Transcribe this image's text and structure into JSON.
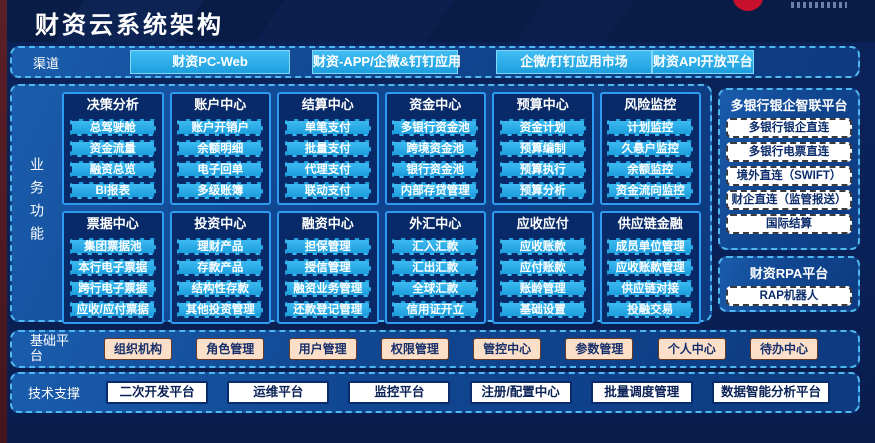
{
  "header": {
    "title": "财资云系统架构"
  },
  "channels": {
    "label": "渠道",
    "items": [
      "财资PC-Web",
      "财资-APP/企微&钉钉应用",
      "企微/钉钉应用市场",
      "财资API开放平台"
    ]
  },
  "business": {
    "label": "业务功能",
    "cards": [
      {
        "title": "决策分析",
        "items": [
          "总驾驶舱",
          "资金流量",
          "融资总览",
          "BI报表"
        ]
      },
      {
        "title": "账户中心",
        "items": [
          "账户开销户",
          "余额明细",
          "电子回单",
          "多级账簿"
        ]
      },
      {
        "title": "结算中心",
        "items": [
          "单笔支付",
          "批量支付",
          "代理支付",
          "联动支付"
        ]
      },
      {
        "title": "资金中心",
        "items": [
          "多银行资金池",
          "跨境资金池",
          "银行资金池",
          "内部存贷管理"
        ]
      },
      {
        "title": "预算中心",
        "items": [
          "资金计划",
          "预算编制",
          "预算执行",
          "预算分析"
        ]
      },
      {
        "title": "风险监控",
        "items": [
          "计划监控",
          "久悬户监控",
          "余额监控",
          "资金流向监控"
        ]
      },
      {
        "title": "票据中心",
        "items": [
          "集团票据池",
          "本行电子票据",
          "跨行电子票据",
          "应收/应付票据"
        ]
      },
      {
        "title": "投资中心",
        "items": [
          "理财产品",
          "存款产品",
          "结构性存款",
          "其他投资管理"
        ]
      },
      {
        "title": "融资中心",
        "items": [
          "担保管理",
          "授信管理",
          "融资业务管理",
          "还款登记管理"
        ]
      },
      {
        "title": "外汇中心",
        "items": [
          "汇入汇款",
          "汇出汇款",
          "全球汇款",
          "信用证开立"
        ]
      },
      {
        "title": "应收应付",
        "items": [
          "应收账款",
          "应付账款",
          "账龄管理",
          "基础设置"
        ]
      },
      {
        "title": "供应链金融",
        "items": [
          "成员单位管理",
          "应收账款管理",
          "供应链对接",
          "投融交易"
        ]
      }
    ]
  },
  "right_panels": [
    {
      "title": "多银行银企智联平台",
      "items": [
        "多银行银企直连",
        "多银行电票直连",
        "境外直连（SWIFT）",
        "财企直连（监管报送）",
        "国际结算"
      ]
    },
    {
      "title": "财资RPA平台",
      "items": [
        "RAP机器人"
      ]
    }
  ],
  "base_platform": {
    "label": "基础平台",
    "items": [
      "组织机构",
      "角色管理",
      "用户管理",
      "权限管理",
      "管控中心",
      "参数管理",
      "个人中心",
      "待办中心"
    ]
  },
  "tech_support": {
    "label": "技术支撑",
    "items": [
      "二次开发平台",
      "运维平台",
      "监控平台",
      "注册/配置中心",
      "批量调度管理",
      "数据智能分析平台"
    ]
  },
  "colors": {
    "page_navy": "#0A2157",
    "header_navy": "#081C46",
    "panel_blue": "#114792",
    "dashed_border_cyan": "#4FB9EF",
    "card_navy": "#082A68",
    "card_border_blue": "#2D9BF0",
    "button_cyan": "#23AAE4",
    "peach_item": "#FBDFC8",
    "white_item": "#FFFFFF",
    "left_strip_maroon": "#4E1B26",
    "logo_red": "#C8102E",
    "text_white": "#FFFFFF",
    "text_navy": "#0A2B6B"
  }
}
